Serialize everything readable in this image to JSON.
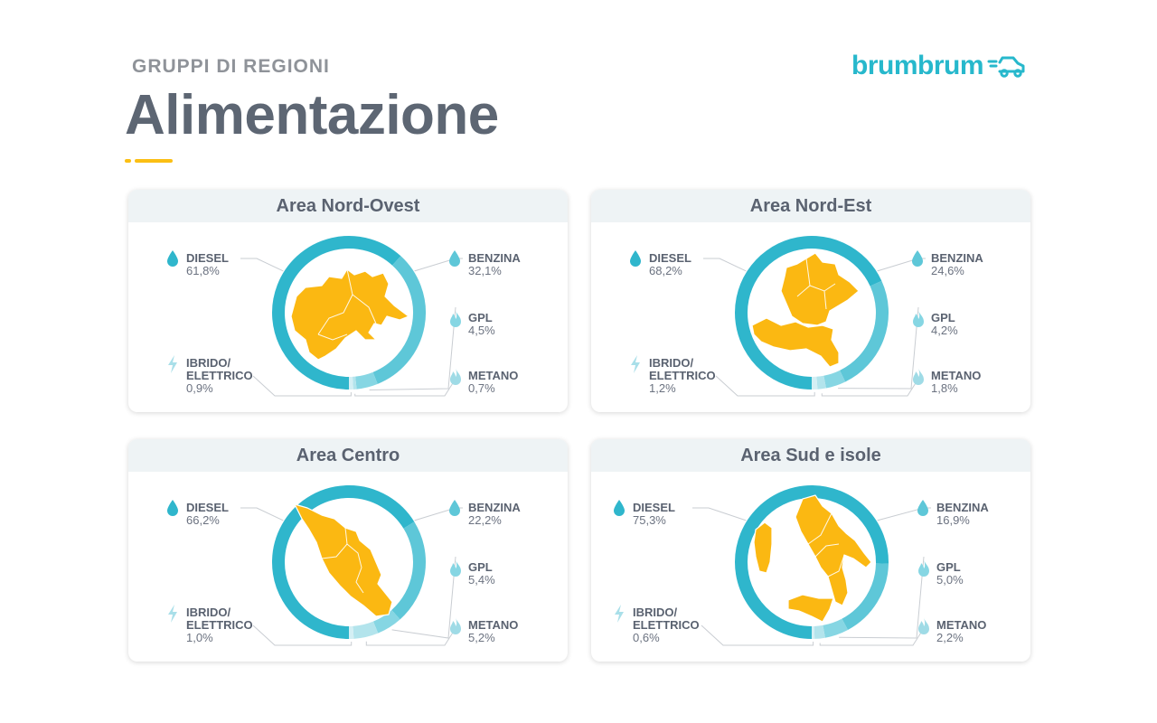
{
  "header": {
    "kicker": "GRUPPI DI REGIONI",
    "title": "Alimentazione"
  },
  "logo": {
    "text": "brumbrum",
    "icon": "car-icon"
  },
  "colors": {
    "diesel": "#2fb6cc",
    "benzina": "#5ec7d8",
    "gpl": "#86d6e3",
    "metano": "#b3e4ec",
    "ibrido": "#d4eff4",
    "region": "#fbb812",
    "accent": "#fbbf14",
    "leader": "#c9cdd2"
  },
  "legend_names": {
    "diesel": "DIESEL",
    "benzina": "BENZINA",
    "gpl": "GPL",
    "metano": "METANO",
    "ibrido_line1": "IBRIDO/",
    "ibrido_line2": "ELETTRICO"
  },
  "chart_data": [
    {
      "type": "pie",
      "title": "Area Nord-Ovest",
      "categories": [
        "DIESEL",
        "BENZINA",
        "GPL",
        "METANO",
        "IBRIDO/ELETTRICO"
      ],
      "values": [
        61.8,
        32.1,
        4.5,
        0.7,
        0.9
      ],
      "labels": [
        "61,8%",
        "32,1%",
        "4,5%",
        "0,7%",
        "0,9%"
      ],
      "map": "nord-ovest"
    },
    {
      "type": "pie",
      "title": "Area Nord-Est",
      "categories": [
        "DIESEL",
        "BENZINA",
        "GPL",
        "METANO",
        "IBRIDO/ELETTRICO"
      ],
      "values": [
        68.2,
        24.6,
        4.2,
        1.8,
        1.2
      ],
      "labels": [
        "68,2%",
        "24,6%",
        "4,2%",
        "1,8%",
        "1,2%"
      ],
      "map": "nord-est"
    },
    {
      "type": "pie",
      "title": "Area Centro",
      "categories": [
        "DIESEL",
        "BENZINA",
        "GPL",
        "METANO",
        "IBRIDO/ELETTRICO"
      ],
      "values": [
        66.2,
        22.2,
        5.4,
        5.2,
        1.0
      ],
      "labels": [
        "66,2%",
        "22,2%",
        "5,4%",
        "5,2%",
        "1,0%"
      ],
      "map": "centro"
    },
    {
      "type": "pie",
      "title": "Area Sud e isole",
      "categories": [
        "DIESEL",
        "BENZINA",
        "GPL",
        "METANO",
        "IBRIDO/ELETTRICO"
      ],
      "values": [
        75.3,
        16.9,
        5.0,
        2.2,
        0.6
      ],
      "labels": [
        "75,3%",
        "16,9%",
        "5,0%",
        "2,2%",
        "0,6%"
      ],
      "map": "sud"
    }
  ]
}
